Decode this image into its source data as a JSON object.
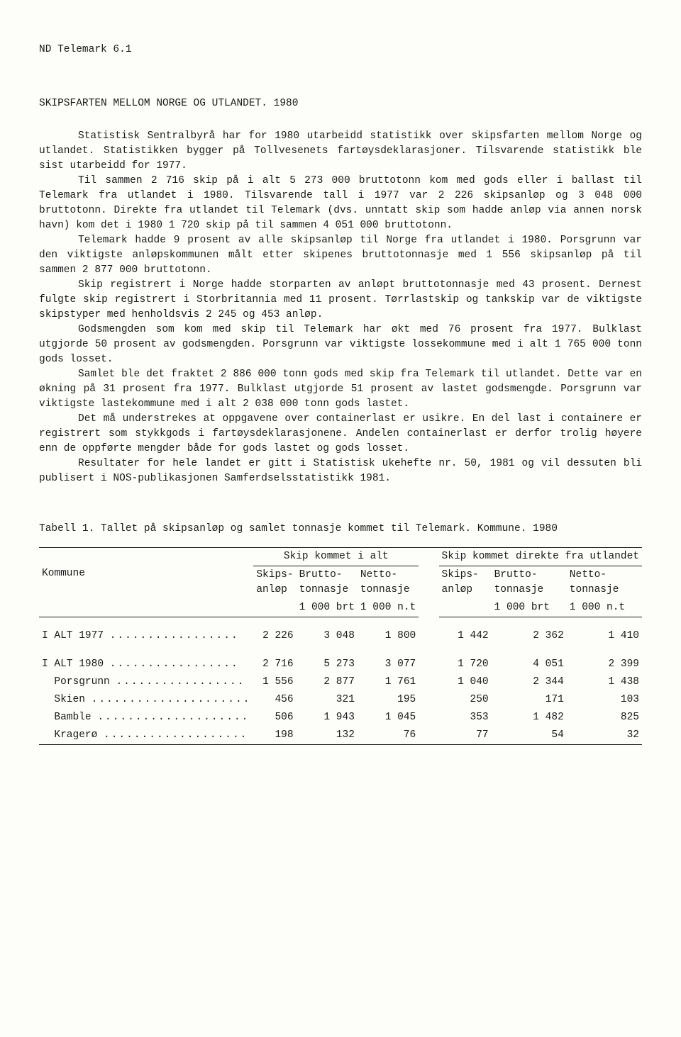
{
  "doc": {
    "header": "ND  Telemark  6.1",
    "title": "SKIPSFARTEN MELLOM NORGE OG UTLANDET.  1980",
    "paragraphs": [
      "Statistisk Sentralbyrå har for 1980 utarbeidd statistikk over skipsfarten mellom Norge og utlandet.  Statistikken bygger på Tollvesenets fartøysdeklarasjoner.  Tilsvarende statistikk ble sist utarbeidd for 1977.",
      "Til sammen 2 716 skip på i alt 5 273 000 bruttotonn kom med gods eller i ballast til Telemark fra utlandet i 1980.  Tilsvarende tall i 1977 var 2 226 skipsanløp og 3 048 000 bruttotonn.  Direkte fra utlandet til Telemark (dvs. unntatt skip som hadde anløp via annen norsk havn) kom det i 1980 1 720 skip på til sammen 4 051 000 bruttotonn.",
      "Telemark hadde 9 prosent av alle skipsanløp til Norge fra utlandet i 1980.  Porsgrunn var den viktigste anløpskommunen målt etter skipenes bruttotonnasje med 1 556 skipsanløp på til sammen 2 877 000 bruttotonn.",
      "Skip registrert i Norge hadde storparten av anløpt bruttotonnasje med 43 prosent.  Dernest fulgte skip   registrert i Storbritannia med 11 prosent.  Tørrlastskip og tankskip var de viktigste skipstyper med henholdsvis 2 245 og 453 anløp.",
      "Godsmengden som kom med skip til Telemark har økt med 76 prosent fra 1977.  Bulklast utgjorde 50 prosent av godsmengden.  Porsgrunn var viktigste lossekommune med i alt 1 765 000 tonn gods losset.",
      "Samlet ble det fraktet 2 886 000 tonn gods med skip fra Telemark til utlandet.  Dette var en økning på 31 prosent fra 1977.  Bulklast utgjorde 51 prosent av lastet godsmengde.  Porsgrunn var viktigste lastekommune med i alt 2 038 000 tonn gods lastet.",
      "Det må understrekes at oppgavene over containerlast er usikre.  En del last i containere er registrert som stykkgods i fartøysdeklarasjonene.  Andelen containerlast er derfor trolig høyere enn de oppførte mengder både for gods lastet og gods losset.",
      "Resultater for hele landet er gitt i Statistisk ukehefte nr. 50, 1981 og vil dessuten bli publisert i NOS-publikasjonen Samferdselsstatistikk 1981."
    ]
  },
  "table": {
    "type": "table",
    "title": "Tabell 1.  Tallet på skipsanløp og samlet tonnasje kommet til Telemark.  Kommune.  1980",
    "columns": {
      "row_label": "Kommune",
      "group1": "Skip kommet i alt",
      "group2": "Skip kommet direkte fra utlandet",
      "sub1": "Skips-\nanløp",
      "sub2": "Brutto-\ntonnasje",
      "sub3": "Netto-\ntonnasje",
      "unit2": "1 000 brt",
      "unit3": "1 000 n.t"
    },
    "rows": [
      {
        "label": "I ALT 1977",
        "dots": true,
        "a": "2 226",
        "b": "3 048",
        "c": "1 800",
        "d": "1 442",
        "e": "2 362",
        "f": "1 410"
      },
      {
        "label": "I ALT 1980",
        "dots": true,
        "a": "2 716",
        "b": "5 273",
        "c": "3 077",
        "d": "1 720",
        "e": "4 051",
        "f": "2 399"
      },
      {
        "label": "Porsgrunn",
        "dots": true,
        "a": "1 556",
        "b": "2 877",
        "c": "1 761",
        "d": "1 040",
        "e": "2 344",
        "f": "1 438"
      },
      {
        "label": "Skien",
        "dots": true,
        "a": "456",
        "b": "321",
        "c": "195",
        "d": "250",
        "e": "171",
        "f": "103"
      },
      {
        "label": "Bamble",
        "dots": true,
        "a": "506",
        "b": "1 943",
        "c": "1 045",
        "d": "353",
        "e": "1 482",
        "f": "825"
      },
      {
        "label": "Kragerø",
        "dots": true,
        "a": "198",
        "b": "132",
        "c": "76",
        "d": "77",
        "e": "54",
        "f": "32"
      }
    ],
    "styling": {
      "background_color": "#fdfdfa",
      "text_color": "#1a1a1a",
      "border_color": "#1a1a1a",
      "font_family": "Courier New",
      "font_size_pt": 11
    }
  }
}
